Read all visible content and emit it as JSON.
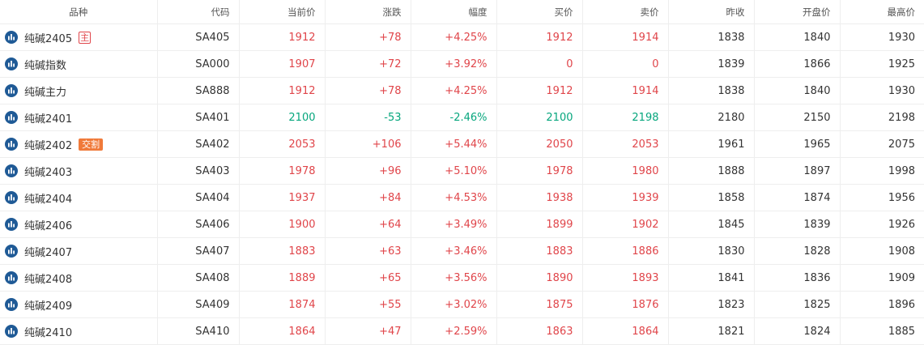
{
  "colors": {
    "up": "#e0454a",
    "down": "#06a67d",
    "neutral": "#333333",
    "icon": "#1f5a96",
    "tag_main": "#e0454a",
    "tag_delivery": "#f07a3a"
  },
  "headers": [
    "品种",
    "代码",
    "当前价",
    "涨跌",
    "幅度",
    "买价",
    "卖价",
    "昨收",
    "开盘价",
    "最高价"
  ],
  "rows": [
    {
      "name": "纯碱2405",
      "tag": "主",
      "tag_type": "main",
      "code": "SA405",
      "price": "1912",
      "change": "+78",
      "pct": "+4.25%",
      "bid": "1912",
      "ask": "1914",
      "prev_close": "1838",
      "open": "1840",
      "high": "1930",
      "trend": "up",
      "bid_trend": "up",
      "ask_trend": "up"
    },
    {
      "name": "纯碱指数",
      "tag": "",
      "tag_type": "",
      "code": "SA000",
      "price": "1907",
      "change": "+72",
      "pct": "+3.92%",
      "bid": "0",
      "ask": "0",
      "prev_close": "1839",
      "open": "1866",
      "high": "1925",
      "trend": "up",
      "bid_trend": "up",
      "ask_trend": "up"
    },
    {
      "name": "纯碱主力",
      "tag": "",
      "tag_type": "",
      "code": "SA888",
      "price": "1912",
      "change": "+78",
      "pct": "+4.25%",
      "bid": "1912",
      "ask": "1914",
      "prev_close": "1838",
      "open": "1840",
      "high": "1930",
      "trend": "up",
      "bid_trend": "up",
      "ask_trend": "up"
    },
    {
      "name": "纯碱2401",
      "tag": "",
      "tag_type": "",
      "code": "SA401",
      "price": "2100",
      "change": "-53",
      "pct": "-2.46%",
      "bid": "2100",
      "ask": "2198",
      "prev_close": "2180",
      "open": "2150",
      "high": "2198",
      "trend": "down",
      "bid_trend": "down",
      "ask_trend": "down"
    },
    {
      "name": "纯碱2402",
      "tag": "交割",
      "tag_type": "delivery",
      "code": "SA402",
      "price": "2053",
      "change": "+106",
      "pct": "+5.44%",
      "bid": "2050",
      "ask": "2053",
      "prev_close": "1961",
      "open": "1965",
      "high": "2075",
      "trend": "up",
      "bid_trend": "up",
      "ask_trend": "up"
    },
    {
      "name": "纯碱2403",
      "tag": "",
      "tag_type": "",
      "code": "SA403",
      "price": "1978",
      "change": "+96",
      "pct": "+5.10%",
      "bid": "1978",
      "ask": "1980",
      "prev_close": "1888",
      "open": "1897",
      "high": "1998",
      "trend": "up",
      "bid_trend": "up",
      "ask_trend": "up"
    },
    {
      "name": "纯碱2404",
      "tag": "",
      "tag_type": "",
      "code": "SA404",
      "price": "1937",
      "change": "+84",
      "pct": "+4.53%",
      "bid": "1938",
      "ask": "1939",
      "prev_close": "1858",
      "open": "1874",
      "high": "1956",
      "trend": "up",
      "bid_trend": "up",
      "ask_trend": "up"
    },
    {
      "name": "纯碱2406",
      "tag": "",
      "tag_type": "",
      "code": "SA406",
      "price": "1900",
      "change": "+64",
      "pct": "+3.49%",
      "bid": "1899",
      "ask": "1902",
      "prev_close": "1845",
      "open": "1839",
      "high": "1926",
      "trend": "up",
      "bid_trend": "up",
      "ask_trend": "up"
    },
    {
      "name": "纯碱2407",
      "tag": "",
      "tag_type": "",
      "code": "SA407",
      "price": "1883",
      "change": "+63",
      "pct": "+3.46%",
      "bid": "1883",
      "ask": "1886",
      "prev_close": "1830",
      "open": "1828",
      "high": "1908",
      "trend": "up",
      "bid_trend": "up",
      "ask_trend": "up"
    },
    {
      "name": "纯碱2408",
      "tag": "",
      "tag_type": "",
      "code": "SA408",
      "price": "1889",
      "change": "+65",
      "pct": "+3.56%",
      "bid": "1890",
      "ask": "1893",
      "prev_close": "1841",
      "open": "1836",
      "high": "1909",
      "trend": "up",
      "bid_trend": "up",
      "ask_trend": "up"
    },
    {
      "name": "纯碱2409",
      "tag": "",
      "tag_type": "",
      "code": "SA409",
      "price": "1874",
      "change": "+55",
      "pct": "+3.02%",
      "bid": "1875",
      "ask": "1876",
      "prev_close": "1823",
      "open": "1825",
      "high": "1896",
      "trend": "up",
      "bid_trend": "up",
      "ask_trend": "up"
    },
    {
      "name": "纯碱2410",
      "tag": "",
      "tag_type": "",
      "code": "SA410",
      "price": "1864",
      "change": "+47",
      "pct": "+2.59%",
      "bid": "1863",
      "ask": "1864",
      "prev_close": "1821",
      "open": "1824",
      "high": "1885",
      "trend": "up",
      "bid_trend": "up",
      "ask_trend": "up"
    }
  ]
}
